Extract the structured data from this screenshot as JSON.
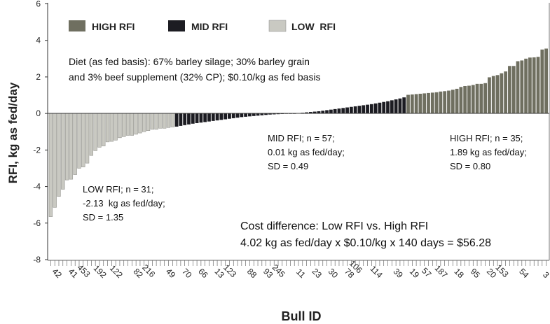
{
  "chart_data": {
    "type": "bar",
    "xlabel": "Bull ID",
    "ylabel": "RFI, kg as fed/day",
    "ylim": [
      -8,
      6
    ],
    "yticks": [
      6,
      4,
      2,
      0,
      -2,
      -4,
      -6,
      -8
    ],
    "grid": false,
    "legend_placement": "top",
    "legend": [
      {
        "label": "HIGH RFI",
        "color": "#6f6f60"
      },
      {
        "label": "MID RFI",
        "color": "#1c1c22"
      },
      {
        "label": "LOW  RFI",
        "color": "#c9c9c2"
      }
    ],
    "series": [
      {
        "group": "LOW RFI",
        "color": "#c9c9c2",
        "values": [
          -5.65,
          -5.14,
          -4.54,
          -4.15,
          -3.64,
          -3.6,
          -3.35,
          -3.0,
          -2.93,
          -2.72,
          -2.3,
          -2.04,
          -1.85,
          -1.78,
          -1.56,
          -1.53,
          -1.46,
          -1.33,
          -1.27,
          -1.2,
          -1.2,
          -1.14,
          -1.07,
          -1.0,
          -0.94,
          -0.87,
          -0.87,
          -0.81,
          -0.81,
          -0.77,
          -0.74
        ]
      },
      {
        "group": "MID RFI",
        "color": "#1c1c22",
        "values": [
          -0.72,
          -0.68,
          -0.64,
          -0.6,
          -0.56,
          -0.53,
          -0.5,
          -0.47,
          -0.44,
          -0.41,
          -0.38,
          -0.35,
          -0.32,
          -0.29,
          -0.26,
          -0.23,
          -0.2,
          -0.18,
          -0.16,
          -0.14,
          -0.12,
          -0.1,
          -0.08,
          -0.06,
          -0.05,
          -0.04,
          -0.03,
          -0.02,
          -0.01,
          0.0,
          0.02,
          0.04,
          0.06,
          0.08,
          0.1,
          0.12,
          0.15,
          0.18,
          0.21,
          0.24,
          0.27,
          0.3,
          0.33,
          0.36,
          0.39,
          0.42,
          0.45,
          0.48,
          0.51,
          0.55,
          0.59,
          0.63,
          0.67,
          0.72,
          0.77,
          0.82,
          0.88
        ]
      },
      {
        "group": "HIGH RFI",
        "color": "#6f6f60",
        "values": [
          1.02,
          1.04,
          1.06,
          1.08,
          1.1,
          1.12,
          1.14,
          1.16,
          1.2,
          1.22,
          1.25,
          1.3,
          1.35,
          1.45,
          1.5,
          1.52,
          1.56,
          1.62,
          1.62,
          1.66,
          1.98,
          2.05,
          2.1,
          2.2,
          2.3,
          2.6,
          2.6,
          2.86,
          2.9,
          3.0,
          3.06,
          3.07,
          3.1,
          3.5,
          3.55
        ]
      }
    ],
    "x_tick_labels": [
      {
        "bar": 1,
        "label": "42"
      },
      {
        "bar": 5,
        "label": "41"
      },
      {
        "bar": 8,
        "label": "453"
      },
      {
        "bar": 12,
        "label": "192"
      },
      {
        "bar": 16,
        "label": "122"
      },
      {
        "bar": 21,
        "label": "82"
      },
      {
        "bar": 24,
        "label": "216"
      },
      {
        "bar": 29,
        "label": "49"
      },
      {
        "bar": 33,
        "label": "70"
      },
      {
        "bar": 37,
        "label": "66"
      },
      {
        "bar": 41,
        "label": "13"
      },
      {
        "bar": 44,
        "label": "123"
      },
      {
        "bar": 49,
        "label": "88"
      },
      {
        "bar": 53,
        "label": "93"
      },
      {
        "bar": 56,
        "label": "245"
      },
      {
        "bar": 61,
        "label": "11"
      },
      {
        "bar": 65,
        "label": "23"
      },
      {
        "bar": 69,
        "label": "30"
      },
      {
        "bar": 73,
        "label": "78"
      },
      {
        "bar": 75,
        "label": "106"
      },
      {
        "bar": 80,
        "label": "114"
      },
      {
        "bar": 85,
        "label": "39"
      },
      {
        "bar": 89,
        "label": "19"
      },
      {
        "bar": 92,
        "label": "57"
      },
      {
        "bar": 96,
        "label": "187"
      },
      {
        "bar": 100,
        "label": "18"
      },
      {
        "bar": 104,
        "label": "95"
      },
      {
        "bar": 108,
        "label": "20"
      },
      {
        "bar": 111,
        "label": "153"
      },
      {
        "bar": 116,
        "label": "54"
      },
      {
        "bar": 121,
        "label": "3"
      }
    ],
    "annotations": {
      "diet_line1": "Diet (as fed basis): 67% barley silage; 30% barley grain",
      "diet_line2": "and 3% beef supplement (32% CP); $0.10/kg as fed basis",
      "mid_line1": "MID RFI; n = 57;",
      "mid_line2": "0.01 kg as fed/day;",
      "mid_line3": "SD = 0.49",
      "high_line1": "HIGH RFI; n = 35;",
      "high_line2": "1.89 kg as fed/day;",
      "high_line3": "SD = 0.80",
      "low_line1": "LOW RFI; n = 31;",
      "low_line2": "-2.13  kg as fed/day;",
      "low_line3": "SD = 1.35",
      "cost_line1": "Cost difference: Low RFI vs. High RFI",
      "cost_line2": "4.02 kg as fed/day x $0.10/kg x 140 days = $56.28"
    }
  }
}
